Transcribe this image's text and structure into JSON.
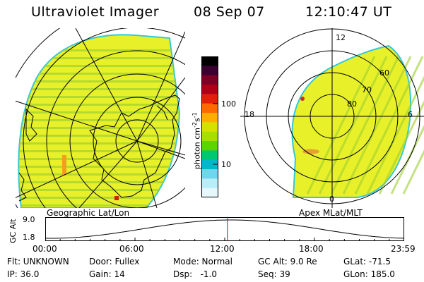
{
  "header": {
    "title": "Ultraviolet Imager",
    "date": "08 Sep 07",
    "time": "12:10:47 UT"
  },
  "colorbar": {
    "unit_text": "photon cm",
    "unit_exp1": "-2",
    "unit_mid": "s",
    "unit_exp2": "-1",
    "ticks": [
      "100",
      "10"
    ],
    "colors": [
      "#000000",
      "#3a0030",
      "#7a0025",
      "#b00018",
      "#e0200a",
      "#ff6a00",
      "#ffae00",
      "#d8e000",
      "#a6e000",
      "#5cd400",
      "#00c870",
      "#00b8c8",
      "#6fd6ee",
      "#b8eef8",
      "#e6f8fc"
    ]
  },
  "geo_panel": {
    "caption": "Geographic Lat/Lon",
    "fill_color": "#e8f02a",
    "stripe_color": "#9ed030"
  },
  "polar_panel": {
    "caption": "Apex MLat/MLT",
    "mlt_labels": [
      "12",
      "18",
      "6",
      "0"
    ],
    "lat_labels": [
      "60",
      "70",
      "80"
    ],
    "fill_color": "#e8f02a"
  },
  "altitude_plot": {
    "ylabel": "GC Alt",
    "yticks": [
      "9.0",
      "1.8"
    ],
    "xticks": [
      "00:00",
      "06:00",
      "12:00",
      "18:00",
      "23:59"
    ],
    "marker_hour": 12.18,
    "marker_color": "#cc0000"
  },
  "footer": {
    "flt": "Flt: UNKNOWN",
    "door": "Door: Fullex",
    "mode": "Mode: Normal",
    "gcalt": "GC Alt: 9.0 Re",
    "glat": "GLat: -71.5",
    "ip": "IP: 36.0",
    "gain": "Gain: 14",
    "dsp": "Dsp:   -1.0",
    "seq": "Seq: 39",
    "glon": "GLon: 185.0"
  }
}
